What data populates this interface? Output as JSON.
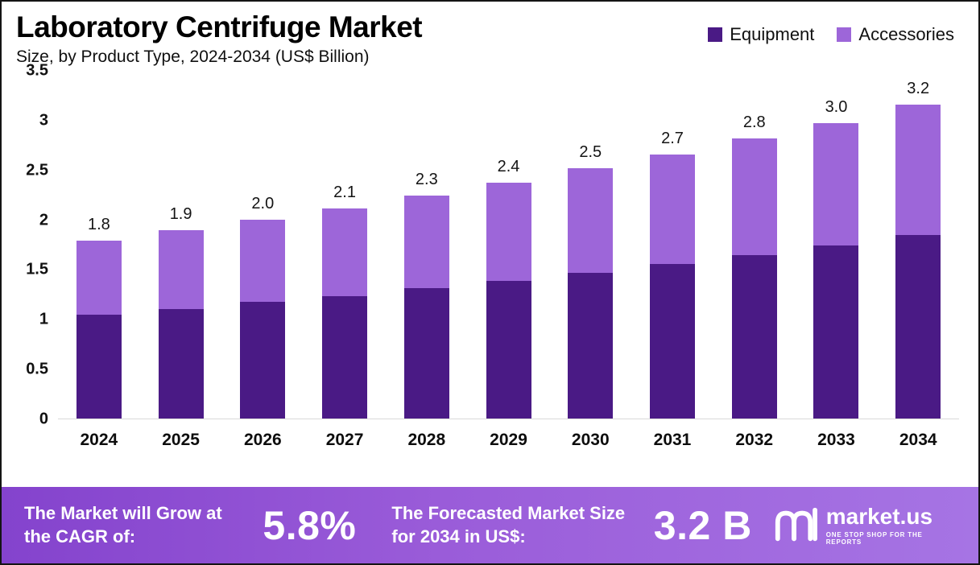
{
  "header": {
    "title": "Laboratory Centrifuge Market",
    "subtitle": "Size, by Product Type, 2024-2034 (US$ Billion)"
  },
  "legend": [
    {
      "label": "Equipment",
      "color": "#4a1a85"
    },
    {
      "label": "Accessories",
      "color": "#9d66d9"
    }
  ],
  "chart_data": {
    "type": "bar",
    "stacked": true,
    "title": "Laboratory Centrifuge Market Size, by Product Type, 2024-2034 (US$ Billion)",
    "categories": [
      "2024",
      "2025",
      "2026",
      "2027",
      "2028",
      "2029",
      "2030",
      "2031",
      "2032",
      "2033",
      "2034"
    ],
    "series": [
      {
        "name": "Equipment",
        "color": "#4a1a85",
        "values": [
          1.04,
          1.1,
          1.17,
          1.23,
          1.31,
          1.38,
          1.46,
          1.55,
          1.64,
          1.74,
          1.84
        ]
      },
      {
        "name": "Accessories",
        "color": "#9d66d9",
        "values": [
          0.75,
          0.79,
          0.83,
          0.88,
          0.93,
          0.99,
          1.05,
          1.1,
          1.17,
          1.23,
          1.31
        ]
      }
    ],
    "totals_labels": [
      "1.8",
      "1.9",
      "2.0",
      "2.1",
      "2.3",
      "2.4",
      "2.5",
      "2.7",
      "2.8",
      "3.0",
      "3.2"
    ],
    "xlabel": "",
    "ylabel": "",
    "ylim": [
      0,
      3.5
    ],
    "yticks": [
      0,
      0.5,
      1,
      1.5,
      2,
      2.5,
      3,
      3.5
    ],
    "grid": false,
    "legend_position": "top-right"
  },
  "footer": {
    "cagr_label": "The Market will Grow at the CAGR of:",
    "cagr_value": "5.8%",
    "forecast_label": "The Forecasted Market Size for 2034 in US$:",
    "forecast_value": "3.2 B",
    "brand": "market.us",
    "brand_tagline": "ONE STOP SHOP FOR THE REPORTS"
  }
}
